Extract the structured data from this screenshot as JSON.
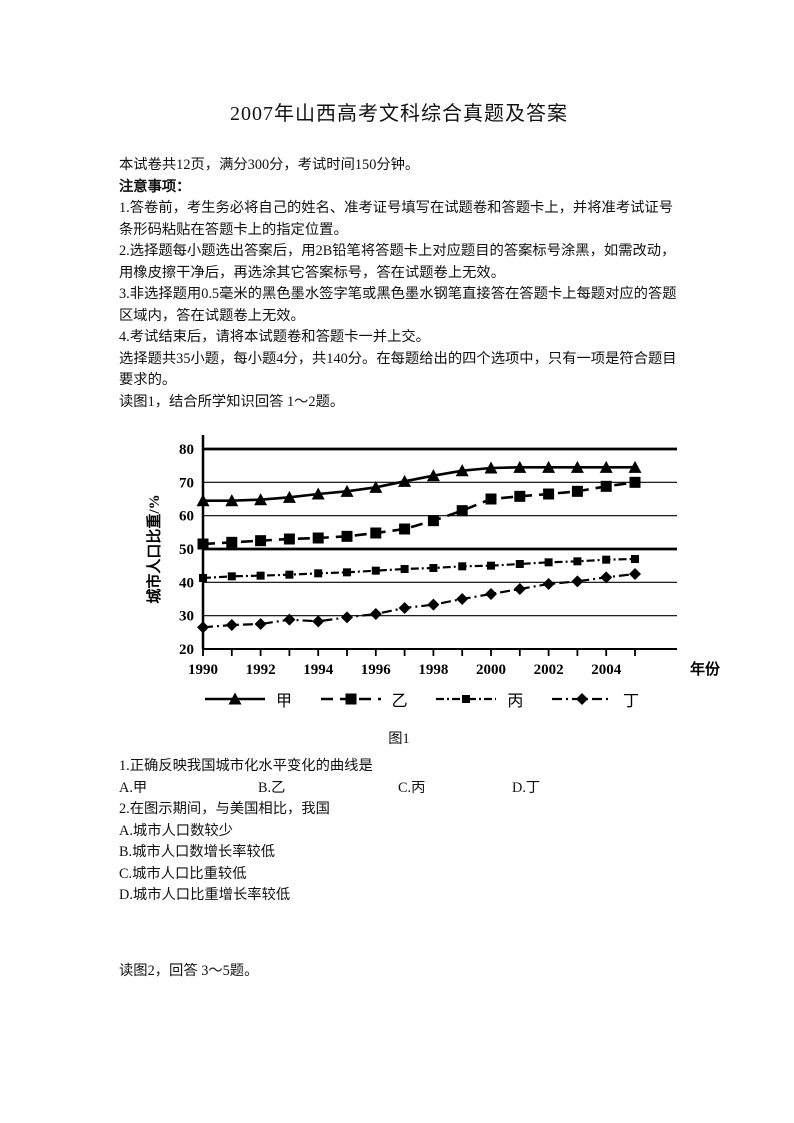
{
  "document": {
    "title": "2007年山西高考文科综合真题及答案",
    "intro": "本试卷共12页，满分300分，考试时间150分钟。",
    "notice_heading": "注意事项：",
    "notices": [
      "1.答卷前，考生务必将自己的姓名、准考证号填写在试题卷和答题卡上，并将准考试证号条形码粘贴在答题卡上的指定位置。",
      "2.选择题每小题选出答案后，用2B铅笔将答题卡上对应题目的答案标号涂黑，如需改动，用橡皮擦干净后，再选涂其它答案标号，答在试题卷上无效。",
      "3.非选择题用0.5毫米的黑色墨水签字笔或黑色墨水钢笔直接答在答题卡上每题对应的答题区域内，答在试题卷上无效。",
      "4.考试结束后，请将本试题卷和答题卡一并上交。"
    ],
    "section_note": "选择题共35小题，每小题4分，共140分。在每题给出的四个选项中，只有一项是符合题目要求的。",
    "fig1_intro": "读图1，结合所学知识回答 1～2题。",
    "fig2_intro": "读图2，回答 3～5题。"
  },
  "questions": {
    "q1": {
      "text": "1.正确反映我国城市化水平变化的曲线是",
      "options": [
        "A.甲",
        "B.乙",
        "C.丙",
        "D.丁"
      ]
    },
    "q2": {
      "text": "2.在图示期间，与美国相比，我国",
      "options": [
        "A.城市人口数较少",
        "B.城市人口数增长率较低",
        "C.城市人口比重较低",
        "D.城市人口比重增长率较低"
      ]
    }
  },
  "chart_data": {
    "type": "line",
    "title": "",
    "caption": "图1",
    "xlabel": "年份",
    "ylabel": "城市人口比重/%",
    "ylim": [
      20,
      80
    ],
    "yticks": [
      20,
      30,
      40,
      50,
      60,
      70,
      80
    ],
    "bold_gridlines": [
      50,
      80
    ],
    "x": [
      1990,
      1991,
      1992,
      1993,
      1994,
      1995,
      1996,
      1997,
      1998,
      1999,
      2000,
      2001,
      2002,
      2003,
      2004,
      2005
    ],
    "xtick_labels": [
      "1990",
      "1992",
      "1994",
      "1996",
      "1998",
      "2000",
      "2002",
      "2004"
    ],
    "legend_position": "bottom",
    "grid": true,
    "series": [
      {
        "name": "甲",
        "marker": "triangle",
        "line": "solid",
        "values": [
          64.5,
          64.5,
          64.8,
          65.5,
          66.5,
          67.3,
          68.5,
          70.3,
          72.0,
          73.5,
          74.3,
          74.5,
          74.5,
          74.5,
          74.5,
          74.5
        ]
      },
      {
        "name": "乙",
        "marker": "square",
        "line": "dashed",
        "values": [
          51.5,
          52.0,
          52.5,
          53.0,
          53.3,
          53.8,
          54.8,
          56.0,
          58.5,
          61.5,
          65.0,
          65.8,
          66.5,
          67.3,
          68.8,
          70.0
        ]
      },
      {
        "name": "丙",
        "marker": "square-small",
        "line": "dash-dot-dot",
        "values": [
          41.3,
          41.8,
          42.0,
          42.3,
          42.7,
          43.0,
          43.5,
          44.0,
          44.3,
          44.8,
          45.0,
          45.5,
          46.0,
          46.3,
          46.8,
          47.0
        ]
      },
      {
        "name": "丁",
        "marker": "diamond",
        "line": "dash-dot",
        "values": [
          26.5,
          27.2,
          27.5,
          28.8,
          28.3,
          29.5,
          30.5,
          32.3,
          33.3,
          35.0,
          36.5,
          38.0,
          39.5,
          40.3,
          41.5,
          42.5
        ]
      }
    ]
  }
}
